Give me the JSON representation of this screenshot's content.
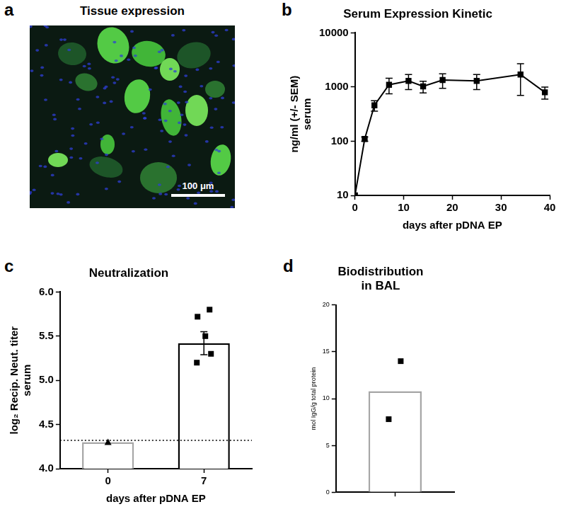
{
  "chart_data": [
    {
      "panel": "a",
      "type": "image",
      "title": "Tissue expression",
      "scale_bar": "100 μm"
    },
    {
      "panel": "b",
      "type": "line",
      "title": "Serum Expression Kinetic",
      "x_label": "days after pDNA EP",
      "y_label": [
        "ng/ml (+/- SEM)",
        "serum"
      ],
      "x": [
        0,
        2,
        4,
        7,
        11,
        14,
        18,
        25,
        34,
        39
      ],
      "values": [
        10,
        110,
        460,
        1100,
        1300,
        1030,
        1350,
        1300,
        1700,
        800
      ],
      "errors": [
        0,
        10,
        100,
        350,
        400,
        250,
        400,
        400,
        1000,
        200
      ],
      "color": "#000000",
      "marker": "square",
      "log": "y",
      "xlim": [
        0,
        40
      ],
      "xticks": [
        0,
        10,
        20,
        30,
        40
      ],
      "ylim": [
        10,
        10000
      ],
      "yticks": [
        10,
        100,
        1000,
        10000
      ],
      "grid": false
    },
    {
      "panel": "c",
      "type": "bar",
      "title": "Neutralization",
      "x_label": "days after pDNA EP",
      "y_label": [
        "log₂ Recip. Neut. titer",
        "serum"
      ],
      "categories": [
        "0",
        "7"
      ],
      "values": [
        4.3,
        5.42
      ],
      "errors": [
        0,
        0.13
      ],
      "colors": [
        "#a6a6a6",
        "#000000"
      ],
      "points": [
        {
          "marker": "triangle",
          "values": [
            4.3
          ]
        },
        {
          "marker": "square",
          "values": [
            5.8,
            5.72,
            5.5,
            5.3,
            5.2
          ]
        }
      ],
      "threshold": 4.32,
      "ylim": [
        4,
        6
      ],
      "yticks": [
        {
          "value": 4,
          "label": "4.0"
        },
        {
          "value": 4.5,
          "label": "4.5"
        },
        {
          "value": 5,
          "label": "5.0"
        },
        {
          "value": 5.5,
          "label": "5.5"
        },
        {
          "value": 6,
          "label": "6.0"
        }
      ],
      "grid": false
    },
    {
      "panel": "d",
      "type": "bar",
      "title": [
        "Biodistribution",
        "in BAL"
      ],
      "y_label": "mol IgG/g total protein",
      "categories": [
        null
      ],
      "values": [
        10.8
      ],
      "color": "#a6a6a6",
      "points": [
        {
          "marker": "square",
          "values": [
            14,
            7.8
          ]
        }
      ],
      "ylim": [
        0,
        20
      ],
      "yticks": [
        0,
        5,
        10,
        15,
        20
      ],
      "grid": false
    }
  ]
}
